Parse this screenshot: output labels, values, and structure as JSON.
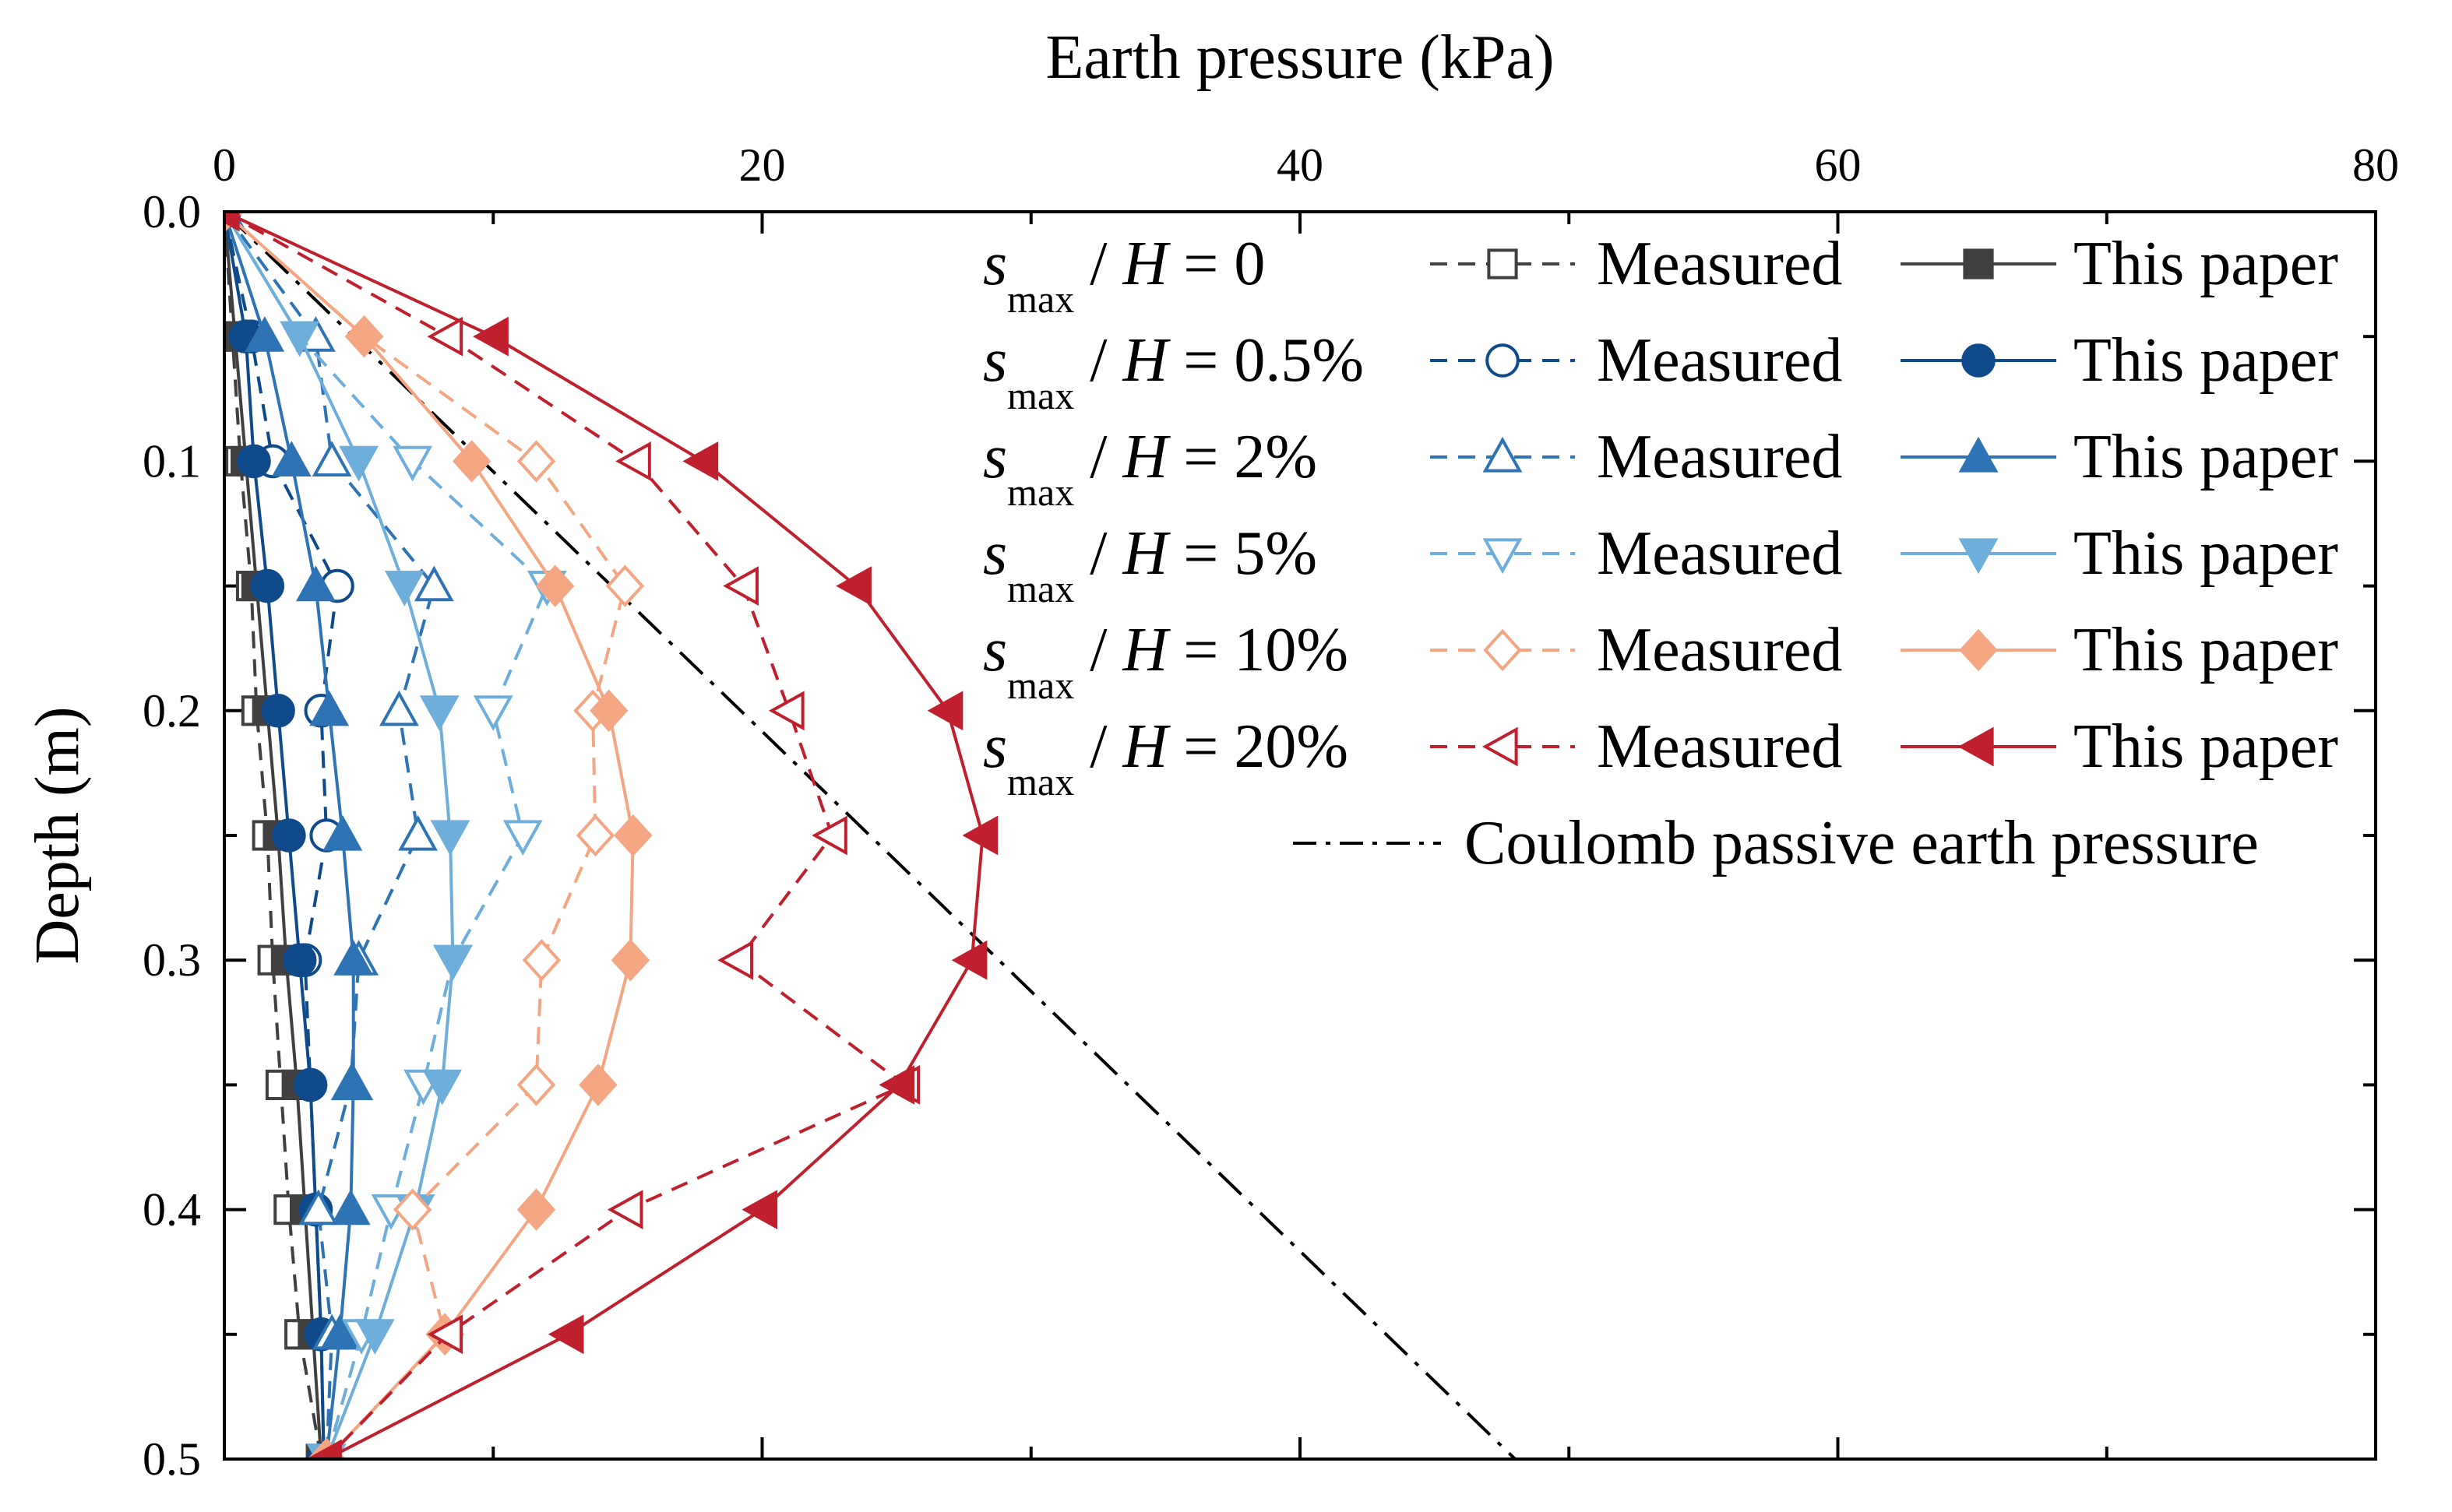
{
  "chart_data": {
    "type": "line",
    "xlabel": "Earth pressure (kPa)",
    "ylabel": "Depth (m)",
    "xlim": [
      0,
      80
    ],
    "ylim": [
      0,
      0.5
    ],
    "x_axis_position": "top",
    "y_axis_inverted": true,
    "x_ticks": [
      "0",
      "20",
      "40",
      "60",
      "80"
    ],
    "y_ticks": [
      "0.0",
      "0.1",
      "0.2",
      "0.3",
      "0.4",
      "0.5"
    ],
    "legend_placement": "top-right",
    "legend_measured_label": "Measured",
    "legend_model_label": "This paper",
    "legend_prefix_var": "s",
    "legend_prefix_sub": "max",
    "legend_prefix_sep": " / ",
    "legend_prefix_h": "H",
    "legend_prefix_eq": " = ",
    "series": [
      {
        "key": "0",
        "label_value": "0",
        "color": "#404040",
        "marker": "square",
        "measured": {
          "x": [
            0,
            0.3,
            0.6,
            1.0,
            1.2,
            1.6,
            1.8,
            2.1,
            2.4,
            2.8,
            3.6
          ],
          "y": [
            0,
            0.05,
            0.1,
            0.15,
            0.2,
            0.25,
            0.3,
            0.35,
            0.4,
            0.45,
            0.5
          ]
        },
        "model": {
          "x": [
            0,
            0.4,
            0.8,
            1.2,
            1.6,
            2.0,
            2.3,
            2.7,
            3.0,
            3.3,
            3.6
          ],
          "y": [
            0,
            0.05,
            0.1,
            0.15,
            0.2,
            0.25,
            0.3,
            0.35,
            0.4,
            0.45,
            0.5
          ]
        }
      },
      {
        "key": "0.5",
        "label_value": "0.5%",
        "color": "#0f4a8a",
        "marker": "circle",
        "measured": {
          "x": [
            0,
            1.0,
            1.8,
            4.2,
            3.6,
            3.8,
            3.0,
            3.2,
            3.4,
            3.6,
            3.7
          ],
          "y": [
            0,
            0.05,
            0.1,
            0.15,
            0.2,
            0.25,
            0.3,
            0.35,
            0.4,
            0.45,
            0.5
          ]
        },
        "model": {
          "x": [
            0,
            0.8,
            1.1,
            1.6,
            2.0,
            2.4,
            2.8,
            3.2,
            3.4,
            3.6,
            3.7
          ],
          "y": [
            0,
            0.05,
            0.1,
            0.15,
            0.2,
            0.25,
            0.3,
            0.35,
            0.4,
            0.45,
            0.5
          ]
        }
      },
      {
        "key": "2",
        "label_value": "2%",
        "color": "#2e74b5",
        "marker": "triangle-up",
        "measured": {
          "x": [
            0,
            3.4,
            4.0,
            7.8,
            6.5,
            7.2,
            5.0,
            4.7,
            3.5,
            4.0,
            3.8
          ],
          "y": [
            0,
            0.05,
            0.1,
            0.15,
            0.2,
            0.25,
            0.3,
            0.35,
            0.4,
            0.45,
            0.5
          ]
        },
        "model": {
          "x": [
            0,
            1.5,
            2.5,
            3.4,
            3.9,
            4.4,
            4.8,
            4.8,
            4.7,
            4.3,
            3.8
          ],
          "y": [
            0,
            0.05,
            0.1,
            0.15,
            0.2,
            0.25,
            0.3,
            0.35,
            0.4,
            0.45,
            0.5
          ]
        }
      },
      {
        "key": "5",
        "label_value": "5%",
        "color": "#6eaedb",
        "marker": "triangle-down",
        "measured": {
          "x": [
            0,
            2.8,
            7.0,
            12.0,
            10.0,
            11.1,
            8.5,
            7.4,
            6.2,
            5.1,
            3.8
          ],
          "y": [
            0,
            0.05,
            0.1,
            0.15,
            0.2,
            0.25,
            0.3,
            0.35,
            0.4,
            0.45,
            0.5
          ]
        },
        "model": {
          "x": [
            0,
            2.8,
            5.0,
            6.7,
            8.0,
            8.4,
            8.5,
            8.1,
            7.1,
            5.6,
            3.8
          ],
          "y": [
            0,
            0.05,
            0.1,
            0.15,
            0.2,
            0.25,
            0.3,
            0.35,
            0.4,
            0.45,
            0.5
          ]
        }
      },
      {
        "key": "10",
        "label_value": "10%",
        "color": "#f4a582",
        "marker": "diamond",
        "measured": {
          "x": [
            0,
            5.2,
            11.6,
            14.9,
            13.7,
            13.8,
            11.8,
            11.6,
            7.0,
            8.2,
            3.8
          ],
          "y": [
            0,
            0.05,
            0.1,
            0.15,
            0.2,
            0.25,
            0.3,
            0.35,
            0.4,
            0.45,
            0.5
          ]
        },
        "model": {
          "x": [
            0,
            5.2,
            9.2,
            12.3,
            14.3,
            15.2,
            15.1,
            13.9,
            11.6,
            8.2,
            3.8
          ],
          "y": [
            0,
            0.05,
            0.1,
            0.15,
            0.2,
            0.25,
            0.3,
            0.35,
            0.4,
            0.45,
            0.5
          ]
        }
      },
      {
        "key": "20",
        "label_value": "20%",
        "color": "#c0202e",
        "marker": "triangle-left",
        "measured": {
          "x": [
            0,
            8.3,
            15.3,
            19.3,
            21.0,
            22.6,
            19.1,
            25.3,
            15.0,
            8.3,
            3.8
          ],
          "y": [
            0,
            0.05,
            0.1,
            0.15,
            0.2,
            0.25,
            0.3,
            0.35,
            0.4,
            0.45,
            0.5
          ]
        },
        "model": {
          "x": [
            0,
            10.0,
            17.8,
            23.5,
            26.9,
            28.2,
            27.8,
            25.1,
            20.0,
            12.8,
            3.8
          ],
          "y": [
            0,
            0.05,
            0.1,
            0.15,
            0.2,
            0.25,
            0.3,
            0.35,
            0.4,
            0.45,
            0.5
          ]
        }
      }
    ],
    "reference_line": {
      "label": "Coulomb passive earth pressure",
      "color": "#000000",
      "style": "dash-dot",
      "x": [
        0,
        48
      ],
      "y": [
        0,
        0.5
      ]
    }
  }
}
